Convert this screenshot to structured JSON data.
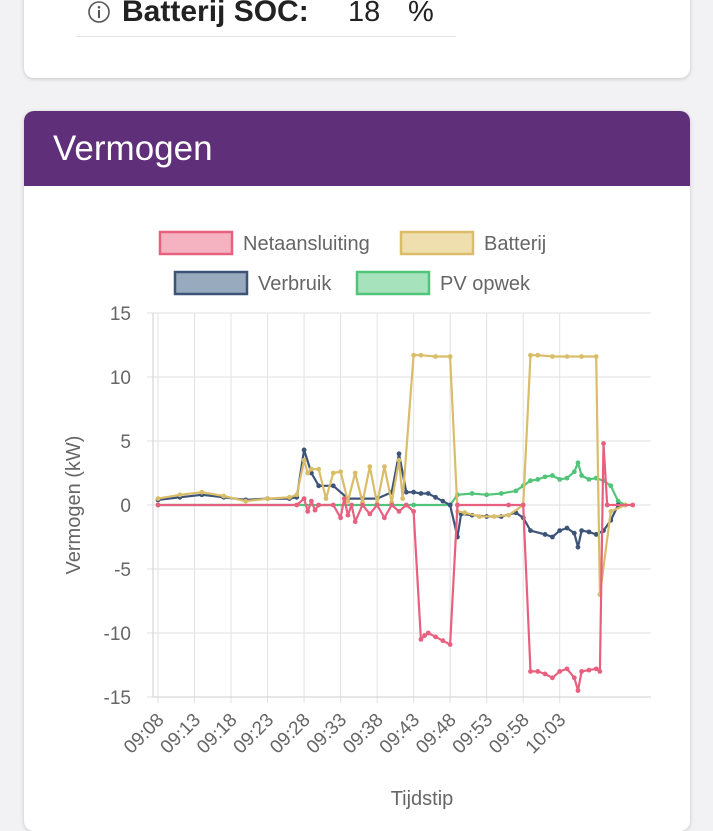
{
  "soc_card": {
    "label": "Batterij SOC:",
    "value": "18",
    "unit": "%"
  },
  "power_card": {
    "title": "Vermogen"
  },
  "chart_data": {
    "type": "line",
    "xlabel": "Tijdstip",
    "ylabel": "Vermogen (kW)",
    "ylim": [
      -15,
      15
    ],
    "yticks": [
      15,
      10,
      5,
      0,
      -5,
      -10,
      -15
    ],
    "xticks": [
      "09:08",
      "09:13",
      "09:18",
      "09:23",
      "09:28",
      "09:33",
      "09:38",
      "09:43",
      "09:48",
      "09:53",
      "09:58",
      "10:03"
    ],
    "xlim_minutes": [
      0,
      60
    ],
    "grid": true,
    "legend_position": "top",
    "series": [
      {
        "name": "Netaansluiting",
        "color": "#e8607f",
        "fill": "#f5b3c2",
        "points": [
          [
            0,
            0
          ],
          [
            19,
            0
          ],
          [
            20,
            0.5
          ],
          [
            20.5,
            -0.5
          ],
          [
            21,
            0.3
          ],
          [
            21.5,
            -0.4
          ],
          [
            22,
            0
          ],
          [
            24,
            0
          ],
          [
            25,
            -1
          ],
          [
            25.5,
            0.5
          ],
          [
            26,
            -0.8
          ],
          [
            26.5,
            0
          ],
          [
            27,
            -1.3
          ],
          [
            28,
            0
          ],
          [
            29,
            -0.7
          ],
          [
            30,
            0
          ],
          [
            31,
            -1
          ],
          [
            32,
            0
          ],
          [
            33,
            -0.5
          ],
          [
            34,
            0
          ],
          [
            35,
            -0.5
          ],
          [
            36,
            -10.5
          ],
          [
            36.5,
            -10.2
          ],
          [
            37,
            -10.0
          ],
          [
            38,
            -10.3
          ],
          [
            39,
            -10.6
          ],
          [
            40,
            -10.9
          ],
          [
            41,
            0
          ],
          [
            48,
            0
          ],
          [
            50,
            0
          ],
          [
            51,
            -13
          ],
          [
            52,
            -13
          ],
          [
            53,
            -13.2
          ],
          [
            54,
            -13.5
          ],
          [
            55,
            -13
          ],
          [
            56,
            -12.8
          ],
          [
            57,
            -13.5
          ],
          [
            57.5,
            -14.5
          ],
          [
            58,
            -13
          ],
          [
            59,
            -12.9
          ],
          [
            60,
            -12.8
          ],
          [
            60.5,
            -13
          ],
          [
            61,
            4.8
          ],
          [
            61.5,
            0
          ],
          [
            65,
            0
          ],
          [
            70,
            0
          ]
        ]
      },
      {
        "name": "Batterij",
        "color": "#d9bd68",
        "fill": "#efdfaf",
        "points": [
          [
            0,
            0.5
          ],
          [
            3,
            0.8
          ],
          [
            6,
            1.0
          ],
          [
            9,
            0.7
          ],
          [
            12,
            0.3
          ],
          [
            15,
            0.5
          ],
          [
            18,
            0.6
          ],
          [
            19,
            0.8
          ],
          [
            20,
            3.5
          ],
          [
            20.5,
            2.5
          ],
          [
            21,
            2.8
          ],
          [
            22,
            2.8
          ],
          [
            23,
            0.5
          ],
          [
            24,
            2.5
          ],
          [
            25,
            2.6
          ],
          [
            26,
            0.3
          ],
          [
            27,
            2.5
          ],
          [
            28,
            0.2
          ],
          [
            29,
            3.0
          ],
          [
            30,
            0.1
          ],
          [
            31,
            3.0
          ],
          [
            32,
            0.2
          ],
          [
            33,
            3.5
          ],
          [
            33.5,
            0.5
          ],
          [
            35,
            11.7
          ],
          [
            36,
            11.7
          ],
          [
            38,
            11.6
          ],
          [
            40,
            11.6
          ],
          [
            41,
            -0.5
          ],
          [
            42,
            -0.6
          ],
          [
            44,
            -0.9
          ],
          [
            46,
            -0.9
          ],
          [
            48,
            -0.8
          ],
          [
            50,
            0
          ],
          [
            51,
            11.7
          ],
          [
            52,
            11.7
          ],
          [
            54,
            11.6
          ],
          [
            56,
            11.6
          ],
          [
            58,
            11.6
          ],
          [
            60,
            11.6
          ],
          [
            60.5,
            -7
          ],
          [
            62,
            -0.5
          ],
          [
            64,
            0
          ],
          [
            70,
            0
          ]
        ]
      },
      {
        "name": "Verbruik",
        "color": "#3d5478",
        "fill": "#98aabd",
        "points": [
          [
            0,
            0.4
          ],
          [
            3,
            0.6
          ],
          [
            6,
            0.8
          ],
          [
            9,
            0.6
          ],
          [
            12,
            0.4
          ],
          [
            15,
            0.5
          ],
          [
            18,
            0.5
          ],
          [
            19,
            0.6
          ],
          [
            20,
            4.3
          ],
          [
            21,
            2.5
          ],
          [
            22,
            1.5
          ],
          [
            24,
            1.5
          ],
          [
            26,
            0.5
          ],
          [
            28,
            0.5
          ],
          [
            30,
            0.5
          ],
          [
            32,
            1.0
          ],
          [
            33,
            4.0
          ],
          [
            34,
            1.0
          ],
          [
            35,
            1.0
          ],
          [
            36,
            0.9
          ],
          [
            37,
            0.9
          ],
          [
            38,
            0.6
          ],
          [
            39,
            0.3
          ],
          [
            40,
            0
          ],
          [
            41,
            -2.5
          ],
          [
            41.5,
            -0.7
          ],
          [
            43,
            -0.8
          ],
          [
            45,
            -0.9
          ],
          [
            47,
            -0.9
          ],
          [
            49,
            -0.6
          ],
          [
            50,
            -1.0
          ],
          [
            51,
            -2.0
          ],
          [
            53,
            -2.3
          ],
          [
            54,
            -2.5
          ],
          [
            55,
            -2.0
          ],
          [
            56,
            -1.8
          ],
          [
            57,
            -2.2
          ],
          [
            57.5,
            -3.3
          ],
          [
            58,
            -2.0
          ],
          [
            59,
            -2.1
          ],
          [
            60,
            -2.3
          ],
          [
            61,
            -2.0
          ],
          [
            62,
            -1.2
          ],
          [
            63,
            0
          ],
          [
            70,
            0
          ]
        ]
      },
      {
        "name": "PV opwek",
        "color": "#52c47a",
        "fill": "#a6e3bd",
        "points": [
          [
            0,
            0
          ],
          [
            35,
            0
          ],
          [
            40,
            0
          ],
          [
            41,
            0.8
          ],
          [
            43,
            0.9
          ],
          [
            45,
            0.8
          ],
          [
            47,
            0.9
          ],
          [
            49,
            1.1
          ],
          [
            50,
            1.5
          ],
          [
            51,
            1.9
          ],
          [
            52,
            2.0
          ],
          [
            53,
            2.2
          ],
          [
            54,
            2.3
          ],
          [
            55,
            2.0
          ],
          [
            56,
            2.1
          ],
          [
            57,
            2.6
          ],
          [
            57.5,
            3.3
          ],
          [
            58,
            2.3
          ],
          [
            59,
            2.0
          ],
          [
            60,
            2.1
          ],
          [
            61,
            1.9
          ],
          [
            62,
            1.5
          ],
          [
            63,
            0.3
          ],
          [
            64,
            0
          ],
          [
            70,
            0
          ]
        ]
      }
    ]
  }
}
